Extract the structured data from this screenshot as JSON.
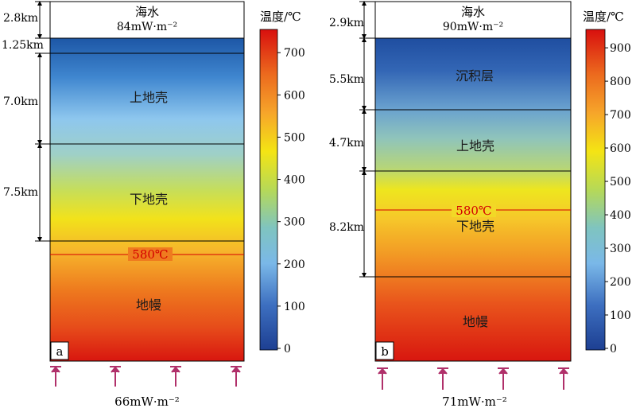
{
  "panel_a": {
    "label": "a",
    "seawater": {
      "label": "海水",
      "flux": "84mW·m⁻²"
    },
    "bottom_flux": "66mW·m⁻²",
    "thicknesses": [
      "2.8km",
      "1.25km",
      "7.0km",
      "7.5km"
    ],
    "layers": [
      "上地壳",
      "下地壳",
      "地幔"
    ],
    "isotherm": "580℃",
    "colorbar": {
      "title": "温度/℃",
      "ticks": [
        "0",
        "100",
        "200",
        "300",
        "400",
        "500",
        "600",
        "700"
      ]
    }
  },
  "panel_b": {
    "label": "b",
    "seawater": {
      "label": "海水",
      "flux": "90mW·m⁻²"
    },
    "bottom_flux": "71mW·m⁻²",
    "thicknesses": [
      "2.9km",
      "5.5km",
      "4.7km",
      "8.2km"
    ],
    "layers": [
      "沉积层",
      "上地壳",
      "下地壳",
      "地幔"
    ],
    "isotherm": "580℃",
    "colorbar": {
      "title": "温度/℃",
      "ticks": [
        "0",
        "100",
        "200",
        "300",
        "400",
        "500",
        "600",
        "700",
        "800",
        "900"
      ]
    }
  },
  "colors": {
    "arrow": "#b0306a",
    "isotherm": "#d40000"
  }
}
